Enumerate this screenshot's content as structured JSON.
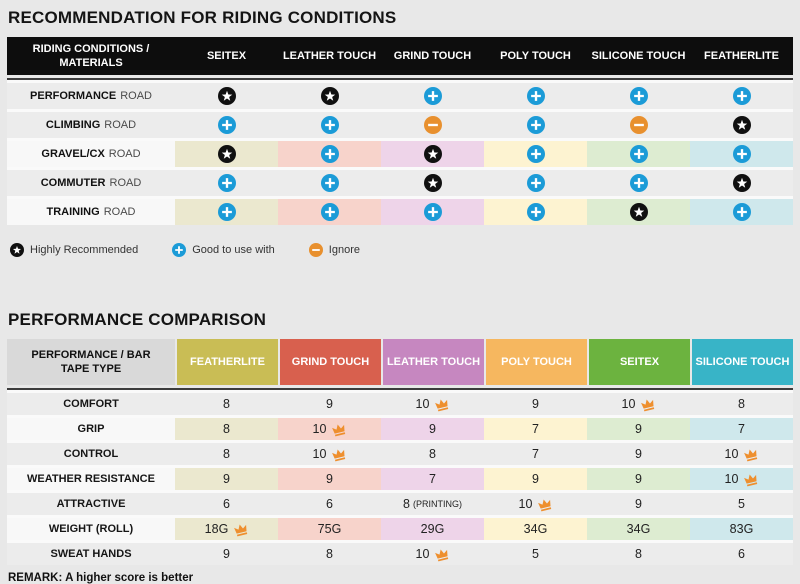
{
  "colors": {
    "page_bg": "#e8e8e8",
    "table1_header_bg": "#0d0d0d",
    "row_gray": "#ececec",
    "tinted_label_bg": "#f8f8f8",
    "header_label_bg": "#d9d9d9",
    "star": "#101010",
    "plus": "#1b9bd7",
    "minus": "#e8902e",
    "crown": "#ee8f2e"
  },
  "section1": {
    "title": "RECOMMENDATION FOR RIDING CONDITIONS",
    "table": {
      "header": [
        "RIDING CONDITIONS / MATERIALS",
        "SEITEX",
        "LEATHER TOUCH",
        "GRIND TOUCH",
        "POLY TOUCH",
        "SILICONE TOUCH",
        "FEATHERLITE"
      ],
      "column_tints": [
        "#ebe8cf",
        "#f7d3cb",
        "#eed4e9",
        "#fdf3d1",
        "#ddecd1",
        "#cfe8ec"
      ],
      "rows": [
        {
          "label_bold": "PERFORMANCE",
          "label_rest": "ROAD",
          "tinted": false,
          "cells": [
            "star",
            "star",
            "plus",
            "plus",
            "plus",
            "plus"
          ]
        },
        {
          "label_bold": "CLIMBING",
          "label_rest": "ROAD",
          "tinted": false,
          "cells": [
            "plus",
            "plus",
            "minus",
            "plus",
            "minus",
            "star"
          ]
        },
        {
          "label_bold": "GRAVEL/CX",
          "label_rest": "ROAD",
          "tinted": true,
          "cells": [
            "star",
            "plus",
            "star",
            "plus",
            "plus",
            "plus"
          ]
        },
        {
          "label_bold": "COMMUTER",
          "label_rest": "ROAD",
          "tinted": false,
          "cells": [
            "plus",
            "plus",
            "star",
            "plus",
            "plus",
            "star"
          ]
        },
        {
          "label_bold": "TRAINING",
          "label_rest": "ROAD",
          "tinted": true,
          "cells": [
            "plus",
            "plus",
            "plus",
            "plus",
            "star",
            "plus"
          ]
        }
      ]
    },
    "legend": [
      {
        "icon": "star",
        "label": "Highly Recommended"
      },
      {
        "icon": "plus",
        "label": "Good to use with"
      },
      {
        "icon": "minus",
        "label": "Ignore"
      }
    ]
  },
  "section2": {
    "title": "PERFORMANCE COMPARISON",
    "table": {
      "header_label": "PERFORMANCE / BAR TAPE TYPE",
      "columns": [
        {
          "label": "FEATHERLITE",
          "color": "#c9bd55",
          "tint": "#ebe8cf"
        },
        {
          "label": "GRIND TOUCH",
          "color": "#d8604e",
          "tint": "#f7d3cb"
        },
        {
          "label": "LEATHER TOUCH",
          "color": "#c687c0",
          "tint": "#eed4e9"
        },
        {
          "label": "POLY TOUCH",
          "color": "#f6b75f",
          "tint": "#fdf3d1"
        },
        {
          "label": "SEITEX",
          "color": "#6cb33f",
          "tint": "#ddecd1"
        },
        {
          "label": "SILICONE TOUCH",
          "color": "#38b4c7",
          "tint": "#cfe8ec"
        }
      ],
      "rows": [
        {
          "label": "COMFORT",
          "tinted": false,
          "cells": [
            {
              "value": "8"
            },
            {
              "value": "9"
            },
            {
              "value": "10",
              "crown": true
            },
            {
              "value": "9"
            },
            {
              "value": "10",
              "crown": true
            },
            {
              "value": "8"
            }
          ]
        },
        {
          "label": "GRIP",
          "tinted": true,
          "cells": [
            {
              "value": "8"
            },
            {
              "value": "10",
              "crown": true
            },
            {
              "value": "9"
            },
            {
              "value": "7"
            },
            {
              "value": "9"
            },
            {
              "value": "7"
            }
          ]
        },
        {
          "label": "CONTROL",
          "tinted": false,
          "cells": [
            {
              "value": "8"
            },
            {
              "value": "10",
              "crown": true
            },
            {
              "value": "8"
            },
            {
              "value": "7"
            },
            {
              "value": "9"
            },
            {
              "value": "10",
              "crown": true
            }
          ]
        },
        {
          "label": "WEATHER RESISTANCE",
          "tinted": true,
          "cells": [
            {
              "value": "9"
            },
            {
              "value": "9"
            },
            {
              "value": "7"
            },
            {
              "value": "9"
            },
            {
              "value": "9"
            },
            {
              "value": "10",
              "crown": true
            }
          ]
        },
        {
          "label": "ATTRACTIVE",
          "tinted": false,
          "cells": [
            {
              "value": "6"
            },
            {
              "value": "6"
            },
            {
              "value": "8",
              "suffix": "(PRINTING)"
            },
            {
              "value": "10",
              "crown": true
            },
            {
              "value": "9"
            },
            {
              "value": "5"
            }
          ]
        },
        {
          "label": "WEIGHT (ROLL)",
          "tinted": true,
          "cells": [
            {
              "value": "18G",
              "crown": true
            },
            {
              "value": "75G"
            },
            {
              "value": "29G"
            },
            {
              "value": "34G"
            },
            {
              "value": "34G"
            },
            {
              "value": "83G"
            }
          ]
        },
        {
          "label": "SWEAT HANDS",
          "tinted": false,
          "cells": [
            {
              "value": "9"
            },
            {
              "value": "8"
            },
            {
              "value": "10",
              "crown": true
            },
            {
              "value": "5"
            },
            {
              "value": "8"
            },
            {
              "value": "6"
            }
          ]
        }
      ]
    },
    "remark": "REMARK: A higher score is better"
  }
}
